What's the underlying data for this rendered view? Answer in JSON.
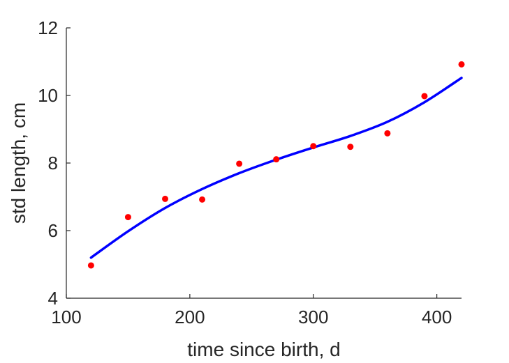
{
  "chart_data": {
    "type": "scatter",
    "title": "",
    "xlabel": "time since birth, d",
    "ylabel": "std length, cm",
    "xlim": [
      100,
      420
    ],
    "ylim": [
      4,
      12
    ],
    "xticks": [
      100,
      200,
      300,
      400
    ],
    "yticks": [
      4,
      6,
      8,
      10,
      12
    ],
    "grid": false,
    "legend": "none",
    "series": [
      {
        "kind": "scatter",
        "color": "#ff0000",
        "x": [
          120,
          150,
          180,
          210,
          240,
          270,
          300,
          330,
          360,
          390,
          420
        ],
        "y": [
          4.97,
          6.4,
          6.94,
          6.92,
          7.98,
          8.11,
          8.5,
          8.48,
          8.88,
          9.98,
          10.92
        ]
      },
      {
        "kind": "line",
        "color": "#0000ff",
        "x": [
          120,
          150,
          180,
          210,
          240,
          270,
          300,
          330,
          360,
          390,
          420
        ],
        "y": [
          5.2,
          5.98,
          6.67,
          7.23,
          7.7,
          8.1,
          8.46,
          8.8,
          9.22,
          9.8,
          10.52
        ]
      }
    ]
  }
}
